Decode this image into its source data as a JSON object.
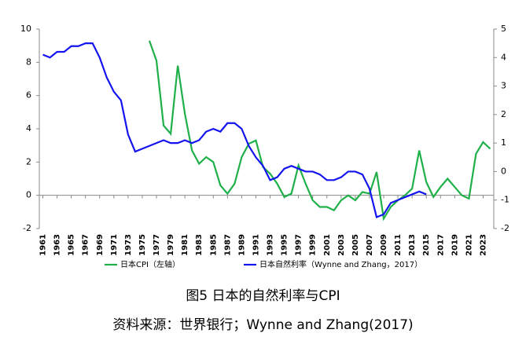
{
  "chart_data": {
    "type": "line",
    "title": "图5  日本的自然利率与CPI",
    "source": "资料来源：世界银行；Wynne and Zhang(2017)",
    "x": [
      1961,
      1962,
      1963,
      1964,
      1965,
      1966,
      1967,
      1968,
      1969,
      1970,
      1971,
      1972,
      1973,
      1974,
      1975,
      1976,
      1977,
      1978,
      1979,
      1980,
      1981,
      1982,
      1983,
      1984,
      1985,
      1986,
      1987,
      1988,
      1989,
      1990,
      1991,
      1992,
      1993,
      1994,
      1995,
      1996,
      1997,
      1998,
      1999,
      2000,
      2001,
      2002,
      2003,
      2004,
      2005,
      2006,
      2007,
      2008,
      2009,
      2010,
      2011,
      2012,
      2013,
      2014,
      2015,
      2016,
      2017,
      2018,
      2019,
      2020,
      2021,
      2022,
      2023,
      2024
    ],
    "xlim": [
      1960.5,
      2024.5
    ],
    "xticks": [
      1961,
      1963,
      1965,
      1967,
      1969,
      1971,
      1973,
      1975,
      1977,
      1979,
      1981,
      1983,
      1985,
      1987,
      1989,
      1991,
      1993,
      1995,
      1997,
      1999,
      2001,
      2003,
      2005,
      2007,
      2009,
      2011,
      2013,
      2015,
      2017,
      2019,
      2021,
      2023
    ],
    "ylim": [
      -2,
      10
    ],
    "yticks": [
      10,
      8,
      6,
      4,
      2,
      0,
      -2
    ],
    "y2lim": [
      -2,
      5
    ],
    "y2ticks": [
      5,
      4,
      3,
      2,
      1,
      0,
      -1,
      -2
    ],
    "legend": "bottom",
    "series": [
      {
        "name": "日本CPI（左轴）",
        "color": "#1fb04a",
        "values": [
          null,
          null,
          null,
          null,
          null,
          null,
          null,
          null,
          null,
          null,
          null,
          null,
          null,
          null,
          null,
          9.3,
          8.1,
          4.2,
          3.7,
          7.8,
          4.9,
          2.7,
          1.9,
          2.3,
          2.0,
          0.6,
          0.1,
          0.7,
          2.3,
          3.1,
          3.3,
          1.7,
          1.3,
          0.7,
          -0.1,
          0.1,
          1.8,
          0.7,
          -0.3,
          -0.7,
          -0.7,
          -0.9,
          -0.3,
          0.0,
          -0.3,
          0.2,
          0.1,
          1.4,
          -1.4,
          -0.7,
          -0.3,
          0.0,
          0.4,
          2.7,
          0.8,
          -0.1,
          0.5,
          1.0,
          0.5,
          0.0,
          -0.2,
          2.5,
          3.2,
          2.8
        ]
      },
      {
        "name": "日本自然利率（Wynne and Zhang，2017）",
        "color": "#1414f0",
        "axis": "y2",
        "values": [
          4.1,
          4.0,
          4.2,
          4.2,
          4.4,
          4.4,
          4.5,
          4.5,
          4.0,
          3.3,
          2.8,
          2.5,
          1.3,
          0.7,
          0.8,
          0.9,
          1.0,
          1.1,
          1.0,
          1.0,
          1.1,
          1.0,
          1.1,
          1.4,
          1.5,
          1.4,
          1.7,
          1.7,
          1.5,
          0.9,
          0.5,
          0.2,
          -0.3,
          -0.2,
          0.1,
          0.2,
          0.1,
          0.0,
          0.0,
          -0.1,
          -0.3,
          -0.3,
          -0.2,
          0.0,
          0.0,
          -0.1,
          -0.6,
          -1.6,
          -1.5,
          -1.1,
          -1.0,
          -0.9,
          -0.8,
          -0.7,
          -0.8,
          null,
          null,
          null,
          null,
          null,
          null,
          null,
          null,
          null
        ]
      }
    ]
  }
}
